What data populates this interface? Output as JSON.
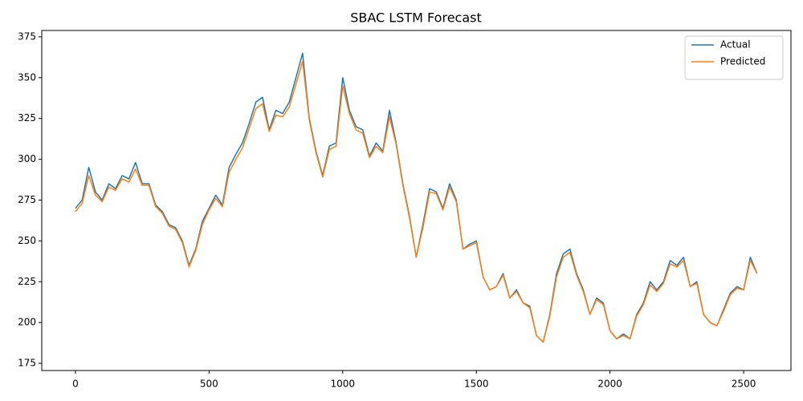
{
  "chart_data": {
    "type": "line",
    "title": "SBAC LSTM Forecast",
    "x": [
      0,
      25,
      50,
      75,
      100,
      125,
      150,
      175,
      200,
      225,
      250,
      275,
      300,
      325,
      350,
      375,
      400,
      425,
      450,
      475,
      500,
      525,
      550,
      575,
      600,
      625,
      650,
      675,
      700,
      725,
      750,
      775,
      800,
      825,
      850,
      875,
      900,
      925,
      950,
      975,
      1000,
      1025,
      1050,
      1075,
      1100,
      1125,
      1150,
      1175,
      1200,
      1225,
      1250,
      1275,
      1300,
      1325,
      1350,
      1375,
      1400,
      1425,
      1450,
      1475,
      1500,
      1525,
      1550,
      1575,
      1600,
      1625,
      1650,
      1675,
      1700,
      1725,
      1750,
      1775,
      1800,
      1825,
      1850,
      1875,
      1900,
      1925,
      1950,
      1975,
      2000,
      2025,
      2050,
      2075,
      2100,
      2125,
      2150,
      2175,
      2200,
      2225,
      2250,
      2275,
      2300,
      2325,
      2350,
      2375,
      2400,
      2425,
      2450,
      2475,
      2500,
      2525,
      2550
    ],
    "series": [
      {
        "name": "Actual",
        "color": "#1f77b4",
        "values": [
          270,
          275,
          295,
          280,
          275,
          285,
          282,
          290,
          288,
          298,
          285,
          285,
          272,
          268,
          260,
          258,
          250,
          235,
          245,
          262,
          270,
          278,
          272,
          295,
          303,
          310,
          322,
          335,
          338,
          318,
          330,
          328,
          335,
          350,
          365,
          325,
          305,
          290,
          308,
          310,
          350,
          330,
          320,
          318,
          302,
          310,
          305,
          330,
          310,
          285,
          265,
          240,
          260,
          282,
          280,
          270,
          285,
          275,
          245,
          248,
          250,
          228,
          220,
          222,
          230,
          215,
          220,
          212,
          210,
          192,
          188,
          205,
          230,
          242,
          245,
          230,
          220,
          205,
          215,
          212,
          195,
          190,
          193,
          190,
          205,
          212,
          225,
          220,
          225,
          238,
          235,
          240,
          222,
          225,
          205,
          200,
          198,
          208,
          218,
          222,
          220,
          240,
          230
        ]
      },
      {
        "name": "Predicted",
        "color": "#ff7f0e",
        "values": [
          268,
          273,
          290,
          278,
          274,
          283,
          281,
          288,
          286,
          294,
          284,
          284,
          271,
          267,
          259,
          257,
          249,
          234,
          244,
          260,
          269,
          276,
          271,
          292,
          300,
          307,
          319,
          331,
          334,
          317,
          327,
          326,
          332,
          346,
          360,
          324,
          304,
          289,
          306,
          308,
          345,
          328,
          318,
          316,
          301,
          308,
          304,
          326,
          309,
          284,
          264,
          240,
          258,
          280,
          279,
          269,
          283,
          274,
          245,
          247,
          249,
          228,
          220,
          222,
          229,
          215,
          219,
          212,
          209,
          192,
          188,
          204,
          228,
          240,
          243,
          229,
          219,
          205,
          214,
          211,
          195,
          190,
          192,
          190,
          204,
          211,
          223,
          219,
          224,
          236,
          234,
          238,
          222,
          224,
          205,
          200,
          198,
          207,
          217,
          221,
          220,
          238,
          230
        ]
      }
    ],
    "xlim": [
      -126,
      2677
    ],
    "ylim": [
      170.6,
      378.9
    ],
    "xticks": [
      0,
      500,
      1000,
      1500,
      2000,
      2500
    ],
    "yticks": [
      175,
      200,
      225,
      250,
      275,
      300,
      325,
      350,
      375
    ],
    "legend": "upper right"
  }
}
